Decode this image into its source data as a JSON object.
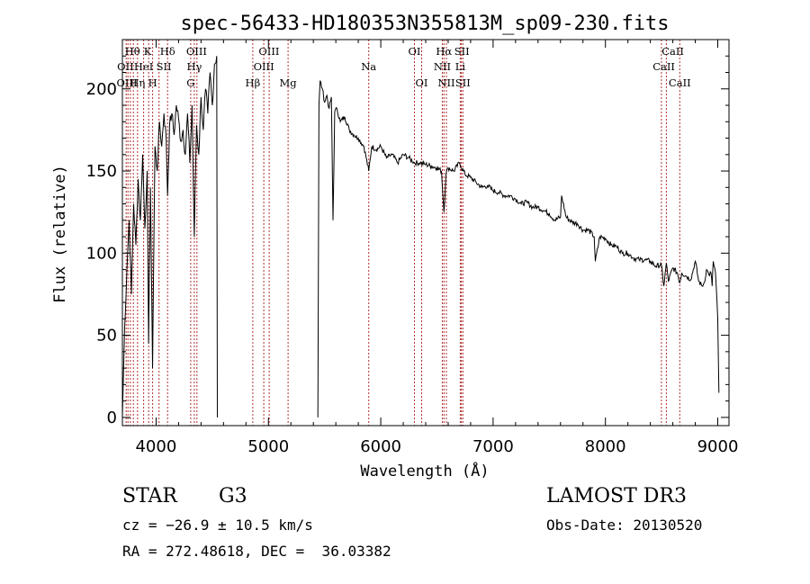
{
  "chart_data": {
    "type": "line",
    "title": "spec-56433-HD180353N355813M_sp09-230.fits",
    "xlabel": "Wavelength (Å)",
    "ylabel": "Flux (relative)",
    "xlim": [
      3700,
      9100
    ],
    "ylim": [
      -5,
      230
    ],
    "x_ticks": [
      4000,
      5000,
      6000,
      7000,
      8000,
      9000
    ],
    "y_ticks": [
      0,
      50,
      100,
      150,
      200
    ],
    "series": [
      {
        "name": "flux",
        "gaps": [
          [
            4545,
            5440
          ]
        ],
        "x": [
          3700,
          3720,
          3740,
          3760,
          3780,
          3800,
          3820,
          3840,
          3860,
          3880,
          3900,
          3920,
          3933,
          3950,
          3968,
          3990,
          4010,
          4030,
          4050,
          4070,
          4090,
          4102,
          4120,
          4140,
          4160,
          4180,
          4200,
          4220,
          4240,
          4260,
          4280,
          4300,
          4320,
          4340,
          4360,
          4380,
          4400,
          4420,
          4440,
          4460,
          4480,
          4500,
          4520,
          4540,
          4545,
          5440,
          5450,
          5460,
          5480,
          5500,
          5520,
          5540,
          5560,
          5575,
          5590,
          5610,
          5640,
          5680,
          5720,
          5760,
          5800,
          5850,
          5893,
          5920,
          5960,
          6000,
          6050,
          6100,
          6150,
          6200,
          6250,
          6300,
          6350,
          6400,
          6450,
          6500,
          6540,
          6563,
          6580,
          6600,
          6650,
          6700,
          6750,
          6800,
          6850,
          6900,
          6950,
          7000,
          7050,
          7100,
          7150,
          7200,
          7250,
          7300,
          7350,
          7400,
          7450,
          7500,
          7550,
          7600,
          7610,
          7650,
          7700,
          7750,
          7800,
          7850,
          7900,
          7910,
          7950,
          8000,
          8050,
          8100,
          8150,
          8200,
          8250,
          8300,
          8350,
          8400,
          8450,
          8498,
          8520,
          8542,
          8560,
          8600,
          8640,
          8662,
          8680,
          8720,
          8760,
          8800,
          8830,
          8860,
          8880,
          8900,
          8920,
          8940,
          8950,
          8960,
          8980,
          9000,
          9010
        ],
        "values": [
          0,
          55,
          90,
          120,
          75,
          130,
          105,
          145,
          120,
          160,
          115,
          150,
          45,
          140,
          30,
          165,
          150,
          180,
          165,
          185,
          170,
          135,
          178,
          185,
          172,
          190,
          182,
          168,
          175,
          160,
          185,
          155,
          190,
          110,
          178,
          160,
          195,
          175,
          200,
          185,
          210,
          190,
          215,
          220,
          0,
          0,
          190,
          205,
          200,
          192,
          196,
          188,
          195,
          120,
          186,
          188,
          180,
          183,
          175,
          172,
          170,
          165,
          150,
          165,
          163,
          165,
          158,
          160,
          155,
          160,
          158,
          155,
          155,
          154,
          153,
          152,
          150,
          125,
          148,
          152,
          150,
          155,
          148,
          146,
          143,
          140,
          141,
          138,
          137,
          135,
          135,
          133,
          130,
          131,
          128,
          128,
          126,
          124,
          120,
          122,
          135,
          122,
          119,
          118,
          114,
          114,
          110,
          95,
          110,
          109,
          105,
          104,
          100,
          100,
          97,
          96,
          96,
          95,
          92,
          93,
          80,
          94,
          83,
          91,
          88,
          82,
          88,
          86,
          84,
          95,
          83,
          80,
          82,
          90,
          87,
          88,
          80,
          95,
          88,
          60,
          15
        ]
      }
    ],
    "line_color": "#000000",
    "marker_color": "#b03030",
    "marker_lines": [
      3734,
      3750,
      3771,
      3798,
      3835,
      3889,
      3934,
      3969,
      4026,
      4102,
      4308,
      4340,
      4363,
      4861,
      4959,
      5007,
      5175,
      5893,
      6300,
      6364,
      6548,
      6563,
      6584,
      6708,
      6717,
      6731,
      8498,
      8542,
      8662
    ],
    "line_labels": [
      {
        "text": "Hθ",
        "x": 3790,
        "row": 1
      },
      {
        "text": "K",
        "x": 3925,
        "row": 1
      },
      {
        "text": "Hδ",
        "x": 4102,
        "row": 1
      },
      {
        "text": "OIII",
        "x": 4360,
        "row": 1
      },
      {
        "text": "OIII",
        "x": 5005,
        "row": 1
      },
      {
        "text": "OI",
        "x": 6300,
        "row": 1
      },
      {
        "text": "Hα",
        "x": 6563,
        "row": 1
      },
      {
        "text": "SII",
        "x": 6722,
        "row": 1
      },
      {
        "text": "CaII",
        "x": 8600,
        "row": 1
      },
      {
        "text": "OII",
        "x": 3727,
        "row": 2
      },
      {
        "text": "HeI",
        "x": 3889,
        "row": 2
      },
      {
        "text": "SII",
        "x": 4069,
        "row": 2
      },
      {
        "text": "Hγ",
        "x": 4340,
        "row": 2
      },
      {
        "text": "OIII",
        "x": 4959,
        "row": 2
      },
      {
        "text": "Na",
        "x": 5893,
        "row": 2
      },
      {
        "text": "NII",
        "x": 6548,
        "row": 2
      },
      {
        "text": "Li",
        "x": 6708,
        "row": 2
      },
      {
        "text": "CaII",
        "x": 8520,
        "row": 2
      },
      {
        "text": "OIII",
        "x": 3740,
        "row": 3
      },
      {
        "text": "Hη",
        "x": 3835,
        "row": 3
      },
      {
        "text": "H",
        "x": 3969,
        "row": 3
      },
      {
        "text": "G",
        "x": 4308,
        "row": 3
      },
      {
        "text": "Hβ",
        "x": 4861,
        "row": 3
      },
      {
        "text": "Mg",
        "x": 5175,
        "row": 3
      },
      {
        "text": "OI",
        "x": 6364,
        "row": 3
      },
      {
        "text": "NII",
        "x": 6584,
        "row": 3
      },
      {
        "text": "SII",
        "x": 6731,
        "row": 3
      },
      {
        "text": "CaII",
        "x": 8662,
        "row": 3
      }
    ]
  },
  "info": {
    "object_class": "STAR",
    "subclass": "G3",
    "survey": "LAMOST DR3",
    "cz": "cz = −26.9 ± 10.5 km/s",
    "obs_date": "Obs-Date: 20130520",
    "coords": "RA = 272.48618, DEC =  36.03382"
  }
}
